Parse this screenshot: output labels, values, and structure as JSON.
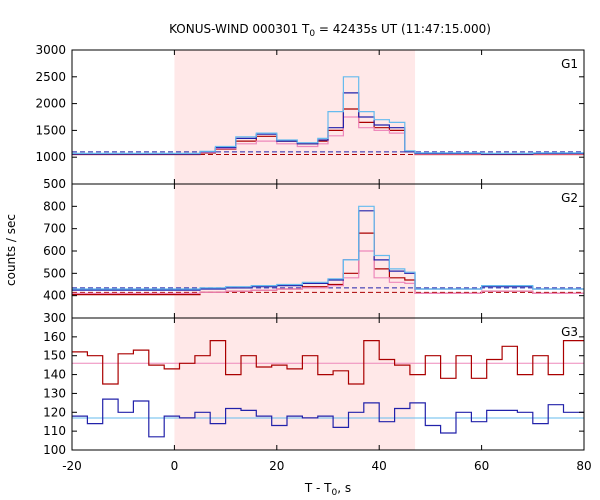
{
  "chart_data": {
    "type": "line",
    "title": "KONUS-WIND 000301 T",
    "title_sub": "0",
    "title_rest": " = 42435s UT (11:47:15.000)",
    "xlabel": "T - T",
    "xlabel_sub": "0",
    "xlabel_rest": ", s",
    "ylabel": "counts / sec",
    "xlim": [
      -20,
      80
    ],
    "x_ticks": [
      -20,
      0,
      20,
      40,
      60,
      80
    ],
    "shaded_interval": [
      0,
      47
    ],
    "colors": {
      "dark_red": "#aa0000",
      "pink": "#ee88bb",
      "dark_blue": "#2222aa",
      "light_blue": "#66bbee",
      "shade": "#ffe8e8"
    },
    "panels": [
      {
        "name": "G1",
        "ylim": [
          500,
          3000
        ],
        "y_ticks": [
          500,
          1000,
          1500,
          2000,
          2500,
          3000
        ],
        "edges": [
          -20,
          5,
          8,
          12,
          16,
          20,
          24,
          28,
          30,
          33,
          36,
          39,
          42,
          45,
          47,
          60,
          70,
          80
        ],
        "series": [
          {
            "name": "",
            "color": "#aa0000",
            "values": [
              1050,
              1080,
              1150,
              1300,
              1390,
              1300,
              1250,
              1300,
              1500,
              1900,
              1650,
              1550,
              1500,
              1100,
              1050,
              1050,
              1050
            ]
          },
          {
            "name": "",
            "color": "#ee88bb",
            "values": [
              1060,
              1090,
              1160,
              1250,
              1300,
              1250,
              1200,
              1250,
              1400,
              1750,
              1550,
              1500,
              1450,
              1100,
              1060,
              1060,
              1060
            ]
          },
          {
            "name": "",
            "color": "#2222aa",
            "values": [
              1060,
              1100,
              1180,
              1350,
              1430,
              1300,
              1250,
              1320,
              1550,
              2200,
              1750,
              1600,
              1550,
              1100,
              1070,
              1060,
              1070
            ]
          },
          {
            "name": "",
            "color": "#66bbee",
            "values": [
              1070,
              1110,
              1200,
              1380,
              1450,
              1320,
              1270,
              1350,
              1850,
              2500,
              1850,
              1700,
              1650,
              1120,
              1080,
              1070,
              1080
            ]
          }
        ],
        "backgrounds": [
          {
            "color": "#aa0000",
            "value": 1050
          },
          {
            "color": "#2222aa",
            "value": 1100
          }
        ]
      },
      {
        "name": "G2",
        "ylim": [
          300,
          900
        ],
        "y_ticks": [
          300,
          400,
          500,
          600,
          700,
          800
        ],
        "edges": [
          -20,
          5,
          10,
          15,
          20,
          25,
          30,
          33,
          36,
          39,
          42,
          45,
          47,
          60,
          70,
          80
        ],
        "series": [
          {
            "name": "",
            "color": "#aa0000",
            "values": [
              405,
              415,
              420,
              425,
              430,
              440,
              450,
              500,
              680,
              520,
              480,
              470,
              410,
              420,
              410
            ]
          },
          {
            "name": "",
            "color": "#ee88bb",
            "values": [
              410,
              415,
              420,
              425,
              430,
              435,
              445,
              480,
              600,
              480,
              460,
              455,
              410,
              420,
              410
            ]
          },
          {
            "name": "",
            "color": "#2222aa",
            "values": [
              425,
              430,
              435,
              440,
              445,
              455,
              470,
              560,
              780,
              560,
              510,
              500,
              430,
              440,
              430
            ]
          },
          {
            "name": "",
            "color": "#66bbee",
            "values": [
              430,
              435,
              440,
              445,
              450,
              460,
              475,
              560,
              800,
              580,
              520,
              505,
              430,
              445,
              430
            ]
          }
        ],
        "backgrounds": [
          {
            "color": "#2222aa",
            "value": 435
          },
          {
            "color": "#aa0000",
            "value": 415
          }
        ]
      },
      {
        "name": "G3",
        "ylim": [
          100,
          170
        ],
        "y_ticks": [
          100,
          110,
          120,
          130,
          140,
          150,
          160
        ],
        "edges": [
          -20,
          -17,
          -14,
          -11,
          -8,
          -5,
          -2,
          1,
          4,
          7,
          10,
          13,
          16,
          19,
          22,
          25,
          28,
          31,
          34,
          37,
          40,
          43,
          46,
          49,
          52,
          55,
          58,
          61,
          64,
          67,
          70,
          73,
          76,
          80
        ],
        "series": [
          {
            "name": "",
            "color": "#aa0000",
            "values": [
              152,
              150,
              135,
              151,
              153,
              145,
              143,
              146,
              150,
              158,
              140,
              150,
              144,
              145,
              143,
              150,
              140,
              142,
              135,
              158,
              148,
              145,
              140,
              150,
              138,
              150,
              138,
              148,
              155,
              140,
              150,
              140,
              158
            ]
          },
          {
            "name": "",
            "color": "#2222aa",
            "values": [
              118,
              114,
              127,
              120,
              126,
              107,
              118,
              117,
              120,
              114,
              122,
              121,
              118,
              113,
              118,
              117,
              118,
              112,
              120,
              125,
              115,
              122,
              125,
              113,
              109,
              120,
              115,
              121,
              121,
              120,
              114,
              124,
              120
            ]
          }
        ],
        "backgrounds": [
          {
            "color": "#ee88bb",
            "value": 146
          },
          {
            "color": "#66bbee",
            "value": 117
          }
        ]
      }
    ]
  }
}
